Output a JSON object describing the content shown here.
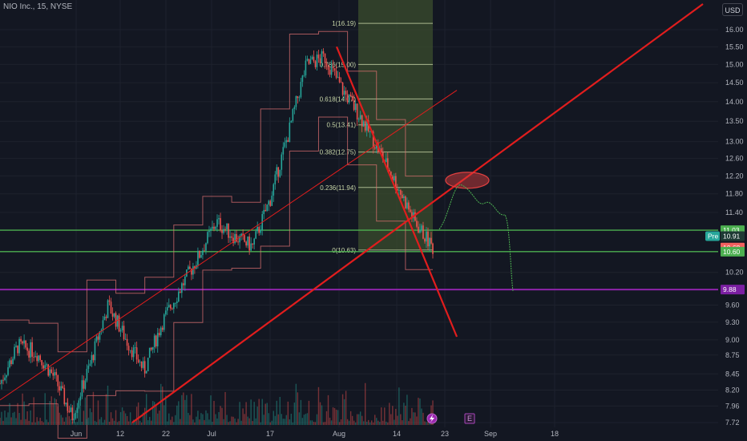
{
  "header": {
    "title": "NIO Inc., 15, NYSE",
    "currency": "USD"
  },
  "price_badges": {
    "pre_label": "Pre",
    "green_top": "11.03",
    "pre_value": "10.91",
    "last": "10.68",
    "green_bottom": "10.60",
    "purple": "9.88"
  },
  "events": {
    "dividends_icon": "lightning-icon",
    "earnings_label": "E"
  },
  "colors": {
    "background": "#131722",
    "up_candle": "#26a69a",
    "down_candle": "#ef5350",
    "trend_line": "#e11d1d",
    "support_line": "#4caf50",
    "purple_line": "#8e24aa",
    "fib_box": "#3b4d2e",
    "ellipse": "#e04040",
    "price_badge_green": "#4caf50",
    "price_badge_red": "#f2605f",
    "price_badge_purple": "#7b1fa2"
  },
  "chart_data": {
    "type": "line",
    "title": "NIO Inc., 15, NYSE",
    "x_ticks": [
      "Jun",
      "12",
      "22",
      "Jul",
      "17",
      "Aug",
      "14",
      "23",
      "Sep",
      "18"
    ],
    "y_ticks": [
      "16.00",
      "15.50",
      "15.00",
      "14.50",
      "14.00",
      "13.50",
      "13.00",
      "12.60",
      "12.20",
      "11.80",
      "11.40",
      "10.20",
      "9.60",
      "9.30",
      "9.00",
      "8.75",
      "8.45",
      "8.20",
      "7.96",
      "7.72"
    ],
    "ylim": [
      7.72,
      16.19
    ],
    "y_scale": "log",
    "grid": true,
    "fibonacci": {
      "levels": [
        {
          "label": "1(16.19)",
          "price": 16.19
        },
        {
          "label": "0.786(15.00)",
          "price": 15.0
        },
        {
          "label": "0.618(14.07)",
          "price": 14.07
        },
        {
          "label": "0.5(13.41)",
          "price": 13.41
        },
        {
          "label": "0.382(12.75)",
          "price": 12.75
        },
        {
          "label": "0.236(11.94)",
          "price": 11.94
        },
        {
          "label": "0(10.63)",
          "price": 10.63
        }
      ]
    },
    "horizontal_levels": [
      {
        "price": 11.03,
        "color": "green"
      },
      {
        "price": 10.6,
        "color": "green"
      },
      {
        "price": 9.88,
        "color": "purple"
      }
    ],
    "series": [
      {
        "x": [
          "May 26",
          "Jun 1",
          "Jun 5",
          "Jun 8",
          "Jun 12",
          "Jun 15",
          "Jun 19",
          "Jun 22",
          "Jun 26",
          "Jun 30",
          "Jul 6",
          "Jul 10",
          "Jul 14",
          "Jul 18",
          "Jul 21",
          "Jul 25",
          "Jul 28",
          "Aug 1",
          "Aug 4",
          "Aug 7",
          "Aug 10",
          "Aug 14",
          "Aug 17",
          "Aug 21",
          "Aug 22"
        ],
        "values": [
          8.3,
          8.9,
          8.8,
          8.4,
          7.8,
          8.6,
          9.6,
          9.0,
          8.5,
          9.3,
          9.9,
          10.5,
          11.2,
          10.9,
          10.7,
          11.7,
          13.2,
          15.0,
          15.2,
          14.3,
          13.6,
          12.8,
          12.0,
          11.2,
          10.68
        ]
      }
    ]
  }
}
